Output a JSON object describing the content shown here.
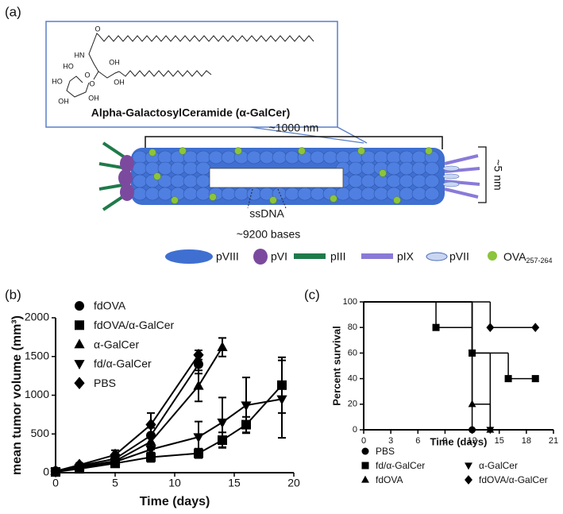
{
  "diagram": {
    "label": "(a)",
    "molecule_atoms": [
      "O",
      "HN",
      "OH",
      "OH",
      "HO",
      "O",
      "O",
      "HO",
      "OH",
      "OH"
    ],
    "molecule_name": "Alpha-GalactosylCeramide (α-GalCer)",
    "length_label": "~1000 nm",
    "width_label": "~5 nm",
    "dna_label": "ssDNA",
    "dna_length": "~9200 bases",
    "legend": [
      "pVIII",
      "pVI",
      "pIII",
      "pIX",
      "pVII",
      {
        "text": "OVA",
        "subscript": "257-264"
      }
    ]
  },
  "chart_data": [
    {
      "type": "line",
      "label": "(b)",
      "xlabel": "Time (days)",
      "ylabel": "mean tumor volume (mm³)",
      "xlim": [
        0,
        20
      ],
      "xticks": [
        0,
        5,
        10,
        15,
        20
      ],
      "ylim": [
        0,
        2000
      ],
      "yticks": [
        0,
        500,
        1000,
        1500,
        2000
      ],
      "series": [
        {
          "name": "fdOVA",
          "color": "#000000",
          "marker": "circle",
          "x": [
            0,
            2,
            5,
            8,
            12
          ],
          "values": [
            20,
            90,
            180,
            480,
            1400
          ],
          "errors": [
            10,
            20,
            50,
            100,
            120
          ]
        },
        {
          "name": "fdOVA/α-GalCer",
          "color": "#000000",
          "marker": "square",
          "x": [
            0,
            2,
            5,
            8,
            12,
            14,
            16,
            19
          ],
          "values": [
            10,
            50,
            120,
            200,
            250,
            420,
            620,
            1130
          ],
          "errors": [
            10,
            20,
            40,
            60,
            60,
            100,
            100,
            360
          ]
        },
        {
          "name": "α-GalCer",
          "color": "#000000",
          "marker": "triangle",
          "x": [
            0,
            2,
            5,
            8,
            12,
            14
          ],
          "values": [
            20,
            80,
            150,
            400,
            1120,
            1620
          ],
          "errors": [
            10,
            20,
            50,
            100,
            200,
            120
          ]
        },
        {
          "name": "fd/α-GalCer",
          "color": "#000000",
          "marker": "triangle-down",
          "x": [
            0,
            2,
            5,
            8,
            12,
            14,
            16,
            19
          ],
          "values": [
            10,
            60,
            140,
            300,
            460,
            650,
            870,
            950
          ],
          "errors": [
            10,
            20,
            50,
            60,
            200,
            320,
            360,
            500
          ]
        },
        {
          "name": "PBS",
          "color": "#000000",
          "marker": "diamond",
          "x": [
            0,
            2,
            5,
            8,
            12
          ],
          "values": [
            20,
            100,
            230,
            620,
            1520
          ],
          "errors": [
            10,
            20,
            60,
            150,
            60
          ]
        }
      ]
    },
    {
      "type": "step",
      "label": "(c)",
      "xlabel": "Time (days)",
      "ylabel": "Percent survival",
      "xlim": [
        0,
        21
      ],
      "xticks": [
        0,
        3,
        6,
        9,
        12,
        15,
        18,
        21
      ],
      "ylim": [
        0,
        100
      ],
      "yticks": [
        0,
        20,
        40,
        60,
        80,
        100
      ],
      "series": [
        {
          "name": "PBS",
          "color": "#000000",
          "marker": "circle",
          "x": [
            0,
            12
          ],
          "values": [
            100,
            0
          ]
        },
        {
          "name": "fd/α-GalCer",
          "color": "#000000",
          "marker": "square",
          "x": [
            0,
            8,
            12,
            16,
            19
          ],
          "values": [
            100,
            80,
            60,
            40,
            40
          ]
        },
        {
          "name": "α-GalCer",
          "color": "#000000",
          "marker": "triangle-down",
          "x": [
            0,
            12,
            14
          ],
          "values": [
            100,
            60,
            0
          ]
        },
        {
          "name": "fdOVA",
          "color": "#000000",
          "marker": "triangle",
          "x": [
            0,
            12,
            14
          ],
          "values": [
            100,
            20,
            0
          ]
        },
        {
          "name": "fdOVA/α-GalCer",
          "color": "#000000",
          "marker": "diamond",
          "x": [
            0,
            14,
            19
          ],
          "values": [
            100,
            80,
            80
          ]
        }
      ]
    }
  ]
}
